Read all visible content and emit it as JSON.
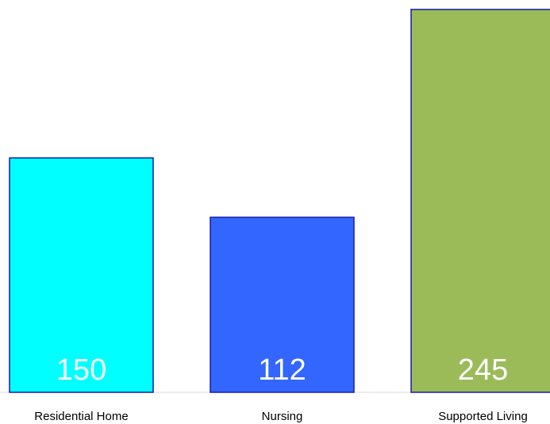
{
  "chart_data": {
    "type": "bar",
    "categories": [
      "Residential Home",
      "Nursing",
      "Supported Living"
    ],
    "values": [
      150,
      112,
      245
    ],
    "colors": [
      "#00ffff",
      "#3366ff",
      "#9bbb59"
    ],
    "bar_border_color": "#1a1aa6",
    "value_label_color": "#ffffff",
    "title": "",
    "xlabel": "",
    "ylabel": "",
    "ylim": [
      0,
      248
    ],
    "grid": false,
    "legend": "none"
  }
}
